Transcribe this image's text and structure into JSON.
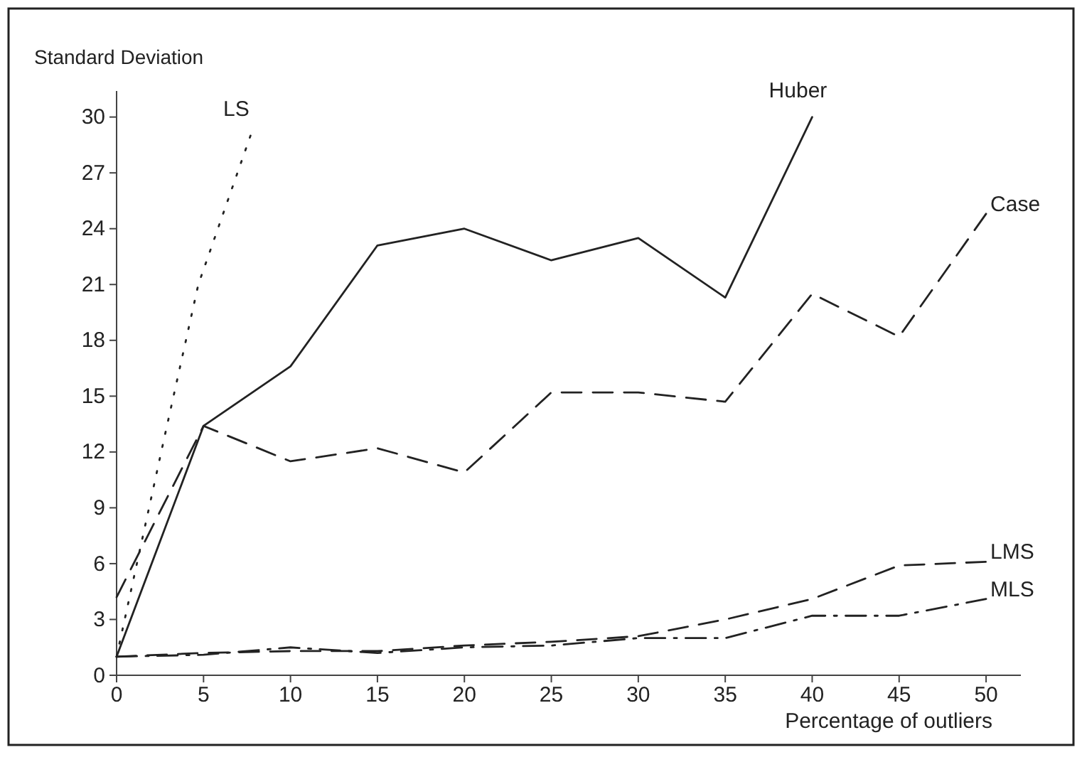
{
  "chart_data": {
    "type": "line",
    "xlabel": "Percentage of outliers",
    "ylabel": "Standard Deviation",
    "xlim": [
      0,
      52
    ],
    "xticks": [
      0,
      5,
      10,
      15,
      20,
      25,
      30,
      35,
      40,
      45,
      50
    ],
    "ylim": [
      0,
      31.4
    ],
    "yticks": [
      0,
      3,
      6,
      9,
      12,
      15,
      18,
      21,
      24,
      27,
      30
    ],
    "grid": false,
    "legend": false,
    "marker": "none",
    "series": [
      {
        "name": "LS",
        "color": "#222222",
        "line_style": "dotted",
        "x": [
          0,
          2.8,
          4.7,
          7.7
        ],
        "values": [
          1,
          13,
          21,
          29
        ]
      },
      {
        "name": "Huber",
        "color": "#222222",
        "line_style": "solid",
        "x": [
          0,
          5,
          10,
          15,
          20,
          25,
          30,
          35,
          40
        ],
        "values": [
          1,
          13.4,
          16.6,
          23.1,
          24,
          22.3,
          23.5,
          20.3,
          30
        ]
      },
      {
        "name": "Case",
        "color": "#222222",
        "line_style": "dashed",
        "x": [
          0,
          5,
          10,
          15,
          20,
          25,
          30,
          35,
          40,
          45,
          50
        ],
        "values": [
          4.2,
          13.4,
          11.5,
          12.2,
          10.9,
          15.2,
          15.2,
          14.7,
          20.5,
          18.2,
          24.8
        ]
      },
      {
        "name": "LMS",
        "color": "#222222",
        "line_style": "dashed",
        "x": [
          0,
          5,
          10,
          15,
          20,
          25,
          30,
          35,
          40,
          45,
          50
        ],
        "values": [
          1,
          1.2,
          1.3,
          1.3,
          1.6,
          1.8,
          2.1,
          3,
          4.1,
          5.9,
          6.1
        ]
      },
      {
        "name": "MLS",
        "color": "#222222",
        "line_style": "dashdot",
        "x": [
          0,
          5,
          10,
          15,
          20,
          25,
          30,
          35,
          40,
          45,
          50
        ],
        "values": [
          1,
          1.1,
          1.5,
          1.2,
          1.5,
          1.6,
          2,
          2,
          3.2,
          3.2,
          4.1
        ]
      }
    ]
  }
}
